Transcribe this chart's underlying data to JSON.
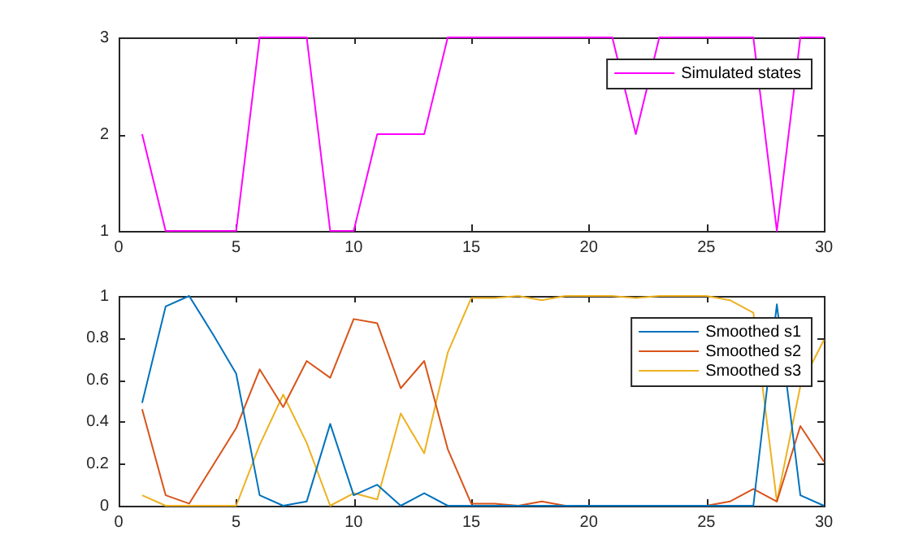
{
  "chart_data": [
    {
      "type": "line",
      "x": [
        1,
        2,
        3,
        4,
        5,
        6,
        7,
        8,
        9,
        10,
        11,
        12,
        13,
        14,
        15,
        16,
        17,
        18,
        19,
        20,
        21,
        22,
        23,
        24,
        25,
        26,
        27,
        28,
        29,
        30
      ],
      "series": [
        {
          "name": "Simulated states",
          "color": "#ff00ff",
          "values": [
            2,
            1,
            1,
            1,
            1,
            3,
            3,
            3,
            1,
            1,
            2,
            2,
            2,
            3,
            3,
            3,
            3,
            3,
            3,
            3,
            3,
            2,
            3,
            3,
            3,
            3,
            3,
            1,
            3,
            3
          ]
        }
      ],
      "xlim": [
        0,
        30
      ],
      "xticks": [
        0,
        5,
        10,
        15,
        20,
        25,
        30
      ],
      "ylim": [
        1,
        3
      ],
      "yticks": [
        1,
        2,
        3
      ],
      "grid": false,
      "legend": "top right",
      "marker": "none",
      "line_style": "solid"
    },
    {
      "type": "line",
      "x": [
        1,
        2,
        3,
        4,
        5,
        6,
        7,
        8,
        9,
        10,
        11,
        12,
        13,
        14,
        15,
        16,
        17,
        18,
        19,
        20,
        21,
        22,
        23,
        24,
        25,
        26,
        27,
        28,
        29,
        30
      ],
      "series": [
        {
          "name": "Smoothed s1",
          "color": "#0072bd",
          "values": [
            0.49,
            0.95,
            1.0,
            0.82,
            0.63,
            0.05,
            0,
            0.02,
            0.39,
            0.05,
            0.1,
            0,
            0.06,
            0,
            0,
            0,
            0,
            0,
            0,
            0,
            0,
            0,
            0,
            0,
            0,
            0,
            0,
            0.96,
            0.05,
            0
          ]
        },
        {
          "name": "Smoothed s2",
          "color": "#d95319",
          "values": [
            0.46,
            0.05,
            0.01,
            0.19,
            0.37,
            0.65,
            0.47,
            0.69,
            0.61,
            0.89,
            0.87,
            0.56,
            0.69,
            0.27,
            0.01,
            0.01,
            0,
            0.02,
            0,
            0,
            0,
            0,
            0,
            0,
            0,
            0.02,
            0.08,
            0.02,
            0.38,
            0.21
          ]
        },
        {
          "name": "Smoothed s3",
          "color": "#edb120",
          "values": [
            0.05,
            0,
            0,
            0,
            0,
            0.29,
            0.53,
            0.3,
            0,
            0.06,
            0.03,
            0.44,
            0.25,
            0.73,
            0.99,
            0.99,
            1,
            0.98,
            1,
            1,
            1,
            0.99,
            1,
            1,
            1,
            0.98,
            0.92,
            0.02,
            0.57,
            0.79
          ]
        }
      ],
      "xlim": [
        0,
        30
      ],
      "xticks": [
        0,
        5,
        10,
        15,
        20,
        25,
        30
      ],
      "ylim": [
        0,
        1
      ],
      "yticks": [
        0,
        0.2,
        0.4,
        0.6,
        0.8,
        1
      ],
      "grid": false,
      "legend": "top right",
      "marker": "none",
      "line_style": "solid"
    }
  ]
}
